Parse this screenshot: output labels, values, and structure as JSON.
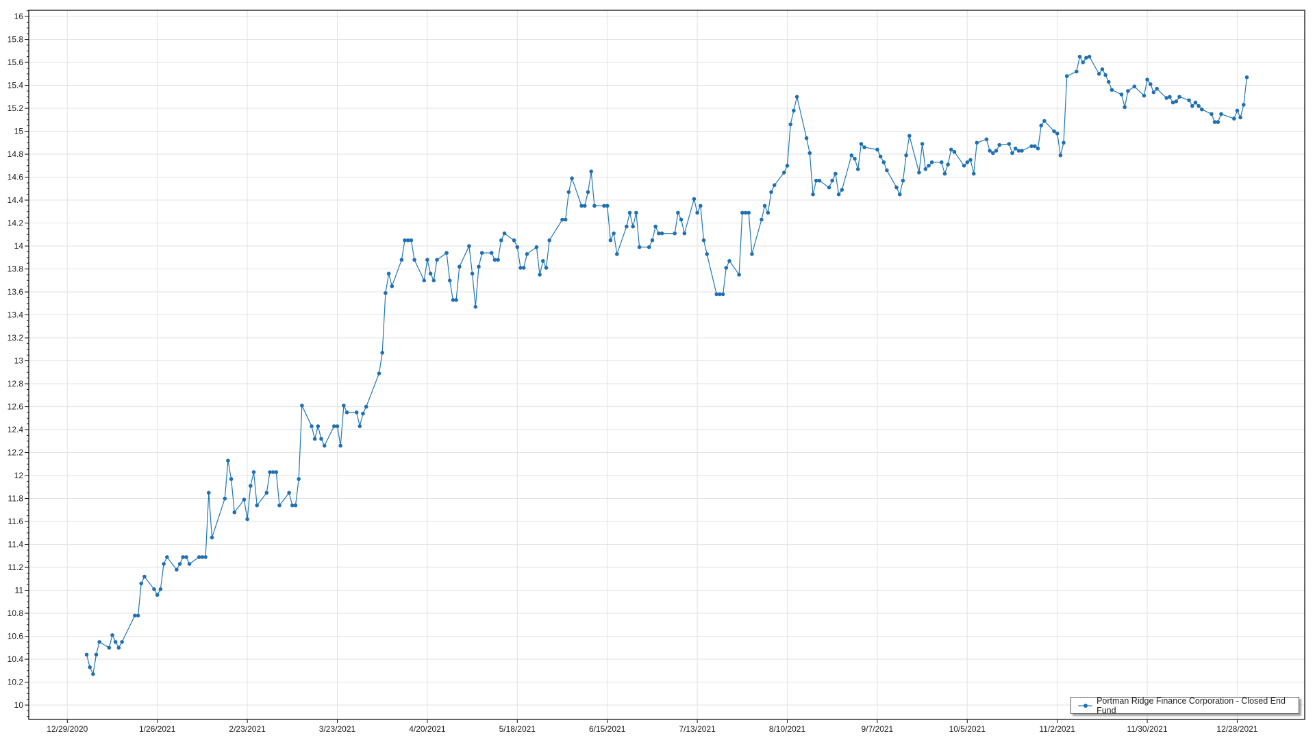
{
  "chart_data": {
    "type": "line",
    "title": "",
    "xlabel": "",
    "ylabel": "",
    "xlim": [
      "2020-12-17",
      "2022-01-18"
    ],
    "ylim": [
      9.875,
      16.054
    ],
    "grid": true,
    "legend_position": "bottom-right",
    "line_color": "#1f77b4",
    "x_ticks": [
      "12/29/2020",
      "1/26/2021",
      "2/23/2021",
      "3/23/2021",
      "4/20/2021",
      "5/18/2021",
      "6/15/2021",
      "7/13/2021",
      "8/10/2021",
      "9/7/2021",
      "10/5/2021",
      "11/2/2021",
      "11/30/2021",
      "12/28/2021"
    ],
    "y_ticks": [
      "10",
      "10.2",
      "10.4",
      "10.6",
      "10.8",
      "11",
      "11.2",
      "11.4",
      "11.6",
      "11.8",
      "12",
      "12.2",
      "12.4",
      "12.6",
      "12.8",
      "13",
      "13.2",
      "13.4",
      "13.6",
      "13.8",
      "14",
      "14.2",
      "14.4",
      "14.6",
      "14.8",
      "15",
      "15.2",
      "15.4",
      "15.6",
      "15.8",
      "16"
    ],
    "series": [
      {
        "name": "Portman Ridge Finance Corporation - Closed End Fund",
        "points": [
          [
            "2021-01-04",
            10.44
          ],
          [
            "2021-01-05",
            10.33
          ],
          [
            "2021-01-06",
            10.27
          ],
          [
            "2021-01-07",
            10.44
          ],
          [
            "2021-01-08",
            10.55
          ],
          [
            "2021-01-11",
            10.5
          ],
          [
            "2021-01-12",
            10.61
          ],
          [
            "2021-01-13",
            10.55
          ],
          [
            "2021-01-14",
            10.5
          ],
          [
            "2021-01-15",
            10.55
          ],
          [
            "2021-01-19",
            10.78
          ],
          [
            "2021-01-20",
            10.78
          ],
          [
            "2021-01-21",
            11.06
          ],
          [
            "2021-01-22",
            11.12
          ],
          [
            "2021-01-25",
            11.01
          ],
          [
            "2021-01-26",
            10.96
          ],
          [
            "2021-01-27",
            11.01
          ],
          [
            "2021-01-28",
            11.23
          ],
          [
            "2021-01-29",
            11.29
          ],
          [
            "2021-02-01",
            11.18
          ],
          [
            "2021-02-02",
            11.23
          ],
          [
            "2021-02-03",
            11.29
          ],
          [
            "2021-02-04",
            11.29
          ],
          [
            "2021-02-05",
            11.23
          ],
          [
            "2021-02-08",
            11.29
          ],
          [
            "2021-02-09",
            11.29
          ],
          [
            "2021-02-10",
            11.29
          ],
          [
            "2021-02-11",
            11.85
          ],
          [
            "2021-02-12",
            11.46
          ],
          [
            "2021-02-16",
            11.8
          ],
          [
            "2021-02-17",
            12.13
          ],
          [
            "2021-02-18",
            11.97
          ],
          [
            "2021-02-19",
            11.68
          ],
          [
            "2021-02-22",
            11.79
          ],
          [
            "2021-02-23",
            11.62
          ],
          [
            "2021-02-24",
            11.91
          ],
          [
            "2021-02-25",
            12.03
          ],
          [
            "2021-02-26",
            11.74
          ],
          [
            "2021-03-01",
            11.85
          ],
          [
            "2021-03-02",
            12.03
          ],
          [
            "2021-03-03",
            12.03
          ],
          [
            "2021-03-04",
            12.03
          ],
          [
            "2021-03-05",
            11.74
          ],
          [
            "2021-03-08",
            11.85
          ],
          [
            "2021-03-09",
            11.74
          ],
          [
            "2021-03-10",
            11.74
          ],
          [
            "2021-03-11",
            11.97
          ],
          [
            "2021-03-12",
            12.61
          ],
          [
            "2021-03-15",
            12.43
          ],
          [
            "2021-03-16",
            12.32
          ],
          [
            "2021-03-17",
            12.43
          ],
          [
            "2021-03-18",
            12.32
          ],
          [
            "2021-03-19",
            12.26
          ],
          [
            "2021-03-22",
            12.43
          ],
          [
            "2021-03-23",
            12.43
          ],
          [
            "2021-03-24",
            12.26
          ],
          [
            "2021-03-25",
            12.61
          ],
          [
            "2021-03-26",
            12.55
          ],
          [
            "2021-03-29",
            12.55
          ],
          [
            "2021-03-30",
            12.43
          ],
          [
            "2021-03-31",
            12.54
          ],
          [
            "2021-04-01",
            12.6
          ],
          [
            "2021-04-05",
            12.89
          ],
          [
            "2021-04-06",
            13.07
          ],
          [
            "2021-04-07",
            13.59
          ],
          [
            "2021-04-08",
            13.76
          ],
          [
            "2021-04-09",
            13.65
          ],
          [
            "2021-04-12",
            13.88
          ],
          [
            "2021-04-13",
            14.05
          ],
          [
            "2021-04-14",
            14.05
          ],
          [
            "2021-04-15",
            14.05
          ],
          [
            "2021-04-16",
            13.88
          ],
          [
            "2021-04-19",
            13.7
          ],
          [
            "2021-04-20",
            13.88
          ],
          [
            "2021-04-21",
            13.76
          ],
          [
            "2021-04-22",
            13.7
          ],
          [
            "2021-04-23",
            13.88
          ],
          [
            "2021-04-26",
            13.94
          ],
          [
            "2021-04-27",
            13.7
          ],
          [
            "2021-04-28",
            13.53
          ],
          [
            "2021-04-29",
            13.53
          ],
          [
            "2021-04-30",
            13.82
          ],
          [
            "2021-05-03",
            14.0
          ],
          [
            "2021-05-04",
            13.76
          ],
          [
            "2021-05-05",
            13.47
          ],
          [
            "2021-05-06",
            13.82
          ],
          [
            "2021-05-07",
            13.94
          ],
          [
            "2021-05-10",
            13.94
          ],
          [
            "2021-05-11",
            13.88
          ],
          [
            "2021-05-12",
            13.88
          ],
          [
            "2021-05-13",
            14.05
          ],
          [
            "2021-05-14",
            14.11
          ],
          [
            "2021-05-17",
            14.05
          ],
          [
            "2021-05-18",
            13.99
          ],
          [
            "2021-05-19",
            13.81
          ],
          [
            "2021-05-20",
            13.81
          ],
          [
            "2021-05-21",
            13.93
          ],
          [
            "2021-05-24",
            13.99
          ],
          [
            "2021-05-25",
            13.75
          ],
          [
            "2021-05-26",
            13.87
          ],
          [
            "2021-05-27",
            13.81
          ],
          [
            "2021-05-28",
            14.05
          ],
          [
            "2021-06-01",
            14.23
          ],
          [
            "2021-06-02",
            14.23
          ],
          [
            "2021-06-03",
            14.47
          ],
          [
            "2021-06-04",
            14.59
          ],
          [
            "2021-06-07",
            14.35
          ],
          [
            "2021-06-08",
            14.35
          ],
          [
            "2021-06-09",
            14.47
          ],
          [
            "2021-06-10",
            14.65
          ],
          [
            "2021-06-11",
            14.35
          ],
          [
            "2021-06-14",
            14.35
          ],
          [
            "2021-06-15",
            14.35
          ],
          [
            "2021-06-16",
            14.05
          ],
          [
            "2021-06-17",
            14.11
          ],
          [
            "2021-06-18",
            13.93
          ],
          [
            "2021-06-21",
            14.17
          ],
          [
            "2021-06-22",
            14.29
          ],
          [
            "2021-06-23",
            14.17
          ],
          [
            "2021-06-24",
            14.29
          ],
          [
            "2021-06-25",
            13.99
          ],
          [
            "2021-06-28",
            13.99
          ],
          [
            "2021-06-29",
            14.05
          ],
          [
            "2021-06-30",
            14.17
          ],
          [
            "2021-07-01",
            14.11
          ],
          [
            "2021-07-02",
            14.11
          ],
          [
            "2021-07-06",
            14.11
          ],
          [
            "2021-07-07",
            14.29
          ],
          [
            "2021-07-08",
            14.23
          ],
          [
            "2021-07-09",
            14.11
          ],
          [
            "2021-07-12",
            14.41
          ],
          [
            "2021-07-13",
            14.29
          ],
          [
            "2021-07-14",
            14.35
          ],
          [
            "2021-07-15",
            14.05
          ],
          [
            "2021-07-16",
            13.93
          ],
          [
            "2021-07-19",
            13.58
          ],
          [
            "2021-07-20",
            13.58
          ],
          [
            "2021-07-21",
            13.58
          ],
          [
            "2021-07-22",
            13.81
          ],
          [
            "2021-07-23",
            13.87
          ],
          [
            "2021-07-26",
            13.75
          ],
          [
            "2021-07-27",
            14.29
          ],
          [
            "2021-07-28",
            14.29
          ],
          [
            "2021-07-29",
            14.29
          ],
          [
            "2021-07-30",
            13.93
          ],
          [
            "2021-08-02",
            14.23
          ],
          [
            "2021-08-03",
            14.35
          ],
          [
            "2021-08-04",
            14.29
          ],
          [
            "2021-08-05",
            14.47
          ],
          [
            "2021-08-06",
            14.53
          ],
          [
            "2021-08-09",
            14.64
          ],
          [
            "2021-08-10",
            14.7
          ],
          [
            "2021-08-11",
            15.06
          ],
          [
            "2021-08-12",
            15.18
          ],
          [
            "2021-08-13",
            15.3
          ],
          [
            "2021-08-16",
            14.94
          ],
          [
            "2021-08-17",
            14.81
          ],
          [
            "2021-08-18",
            14.45
          ],
          [
            "2021-08-19",
            14.57
          ],
          [
            "2021-08-20",
            14.57
          ],
          [
            "2021-08-23",
            14.51
          ],
          [
            "2021-08-24",
            14.57
          ],
          [
            "2021-08-25",
            14.63
          ],
          [
            "2021-08-26",
            14.45
          ],
          [
            "2021-08-27",
            14.49
          ],
          [
            "2021-08-30",
            14.79
          ],
          [
            "2021-08-31",
            14.76
          ],
          [
            "2021-09-01",
            14.67
          ],
          [
            "2021-09-02",
            14.89
          ],
          [
            "2021-09-03",
            14.86
          ],
          [
            "2021-09-07",
            14.84
          ],
          [
            "2021-09-08",
            14.78
          ],
          [
            "2021-09-09",
            14.73
          ],
          [
            "2021-09-10",
            14.66
          ],
          [
            "2021-09-13",
            14.51
          ],
          [
            "2021-09-14",
            14.45
          ],
          [
            "2021-09-15",
            14.57
          ],
          [
            "2021-09-16",
            14.79
          ],
          [
            "2021-09-17",
            14.96
          ],
          [
            "2021-09-20",
            14.64
          ],
          [
            "2021-09-21",
            14.89
          ],
          [
            "2021-09-22",
            14.67
          ],
          [
            "2021-09-23",
            14.7
          ],
          [
            "2021-09-24",
            14.73
          ],
          [
            "2021-09-27",
            14.73
          ],
          [
            "2021-09-28",
            14.63
          ],
          [
            "2021-09-29",
            14.71
          ],
          [
            "2021-09-30",
            14.84
          ],
          [
            "2021-10-01",
            14.82
          ],
          [
            "2021-10-04",
            14.7
          ],
          [
            "2021-10-05",
            14.73
          ],
          [
            "2021-10-06",
            14.75
          ],
          [
            "2021-10-07",
            14.63
          ],
          [
            "2021-10-08",
            14.9
          ],
          [
            "2021-10-11",
            14.93
          ],
          [
            "2021-10-12",
            14.83
          ],
          [
            "2021-10-13",
            14.81
          ],
          [
            "2021-10-14",
            14.83
          ],
          [
            "2021-10-15",
            14.88
          ],
          [
            "2021-10-18",
            14.89
          ],
          [
            "2021-10-19",
            14.81
          ],
          [
            "2021-10-20",
            14.85
          ],
          [
            "2021-10-21",
            14.83
          ],
          [
            "2021-10-22",
            14.83
          ],
          [
            "2021-10-25",
            14.87
          ],
          [
            "2021-10-26",
            14.87
          ],
          [
            "2021-10-27",
            14.85
          ],
          [
            "2021-10-28",
            15.05
          ],
          [
            "2021-10-29",
            15.09
          ],
          [
            "2021-11-01",
            15.0
          ],
          [
            "2021-11-02",
            14.98
          ],
          [
            "2021-11-03",
            14.79
          ],
          [
            "2021-11-04",
            14.9
          ],
          [
            "2021-11-05",
            15.48
          ],
          [
            "2021-11-08",
            15.52
          ],
          [
            "2021-11-09",
            15.65
          ],
          [
            "2021-11-10",
            15.6
          ],
          [
            "2021-11-11",
            15.64
          ],
          [
            "2021-11-12",
            15.65
          ],
          [
            "2021-11-15",
            15.5
          ],
          [
            "2021-11-16",
            15.54
          ],
          [
            "2021-11-17",
            15.49
          ],
          [
            "2021-11-18",
            15.43
          ],
          [
            "2021-11-19",
            15.36
          ],
          [
            "2021-11-22",
            15.32
          ],
          [
            "2021-11-23",
            15.21
          ],
          [
            "2021-11-24",
            15.35
          ],
          [
            "2021-11-26",
            15.39
          ],
          [
            "2021-11-29",
            15.31
          ],
          [
            "2021-11-30",
            15.45
          ],
          [
            "2021-12-01",
            15.41
          ],
          [
            "2021-12-02",
            15.34
          ],
          [
            "2021-12-03",
            15.37
          ],
          [
            "2021-12-06",
            15.29
          ],
          [
            "2021-12-07",
            15.3
          ],
          [
            "2021-12-08",
            15.25
          ],
          [
            "2021-12-09",
            15.26
          ],
          [
            "2021-12-10",
            15.3
          ],
          [
            "2021-12-13",
            15.27
          ],
          [
            "2021-12-14",
            15.22
          ],
          [
            "2021-12-15",
            15.25
          ],
          [
            "2021-12-16",
            15.22
          ],
          [
            "2021-12-17",
            15.19
          ],
          [
            "2021-12-20",
            15.15
          ],
          [
            "2021-12-21",
            15.08
          ],
          [
            "2021-12-22",
            15.08
          ],
          [
            "2021-12-23",
            15.15
          ],
          [
            "2021-12-27",
            15.11
          ],
          [
            "2021-12-28",
            15.18
          ],
          [
            "2021-12-29",
            15.12
          ],
          [
            "2021-12-30",
            15.23
          ],
          [
            "2021-12-31",
            15.47
          ]
        ]
      }
    ]
  }
}
